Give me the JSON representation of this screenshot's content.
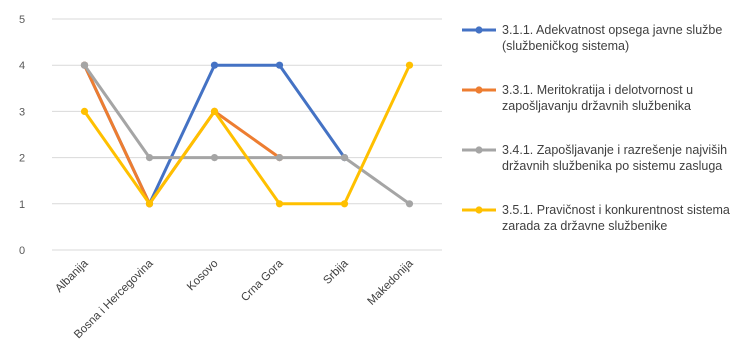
{
  "chart_data": {
    "type": "line",
    "categories": [
      "Albanija",
      "Bosna i Hercegovina",
      "Kosovo",
      "Crna Gora",
      "Srbija",
      "Makedonija"
    ],
    "ylim": [
      0,
      5
    ],
    "yticks": [
      "0",
      "1",
      "2",
      "3",
      "4",
      "5"
    ],
    "grid": true,
    "legend_position": "right",
    "series": [
      {
        "name": "3.1.1. Adekvatnost opsega javne službe (službeničkog sistema)",
        "name_lines": [
          "3.1.1. Adekvatnost opsega javne službe",
          "(službeničkog sistema)"
        ],
        "color": "#4472C4",
        "values": [
          4,
          1,
          4,
          4,
          2,
          null
        ]
      },
      {
        "name": "3.3.1. Meritokratija i delotvornost u zapošljavanju državnih službenika",
        "name_lines": [
          "3.3.1. Meritokratija i delotvornost u",
          "zapošljavanju državnih službenika"
        ],
        "color": "#ED7D31",
        "values": [
          4,
          1,
          3,
          2,
          null,
          null
        ]
      },
      {
        "name": "3.4.1. Zapošljavanje i razrešenje najviših državnih službenika po sistemu zasluga",
        "name_lines": [
          "3.4.1. Zapošljavanje i razrešenje najviših",
          "državnih službenika po sistemu zasluga"
        ],
        "color": "#A5A5A5",
        "values": [
          4,
          2,
          2,
          2,
          2,
          1
        ]
      },
      {
        "name": "3.5.1. Pravičnost i konkurentnost sistema zarada za državne službenike",
        "name_lines": [
          "3.5.1. Pravičnost i konkurentnost sistema",
          "zarada za državne službenike"
        ],
        "color": "#FFC000",
        "values": [
          3,
          1,
          3,
          1,
          1,
          4
        ]
      }
    ]
  }
}
